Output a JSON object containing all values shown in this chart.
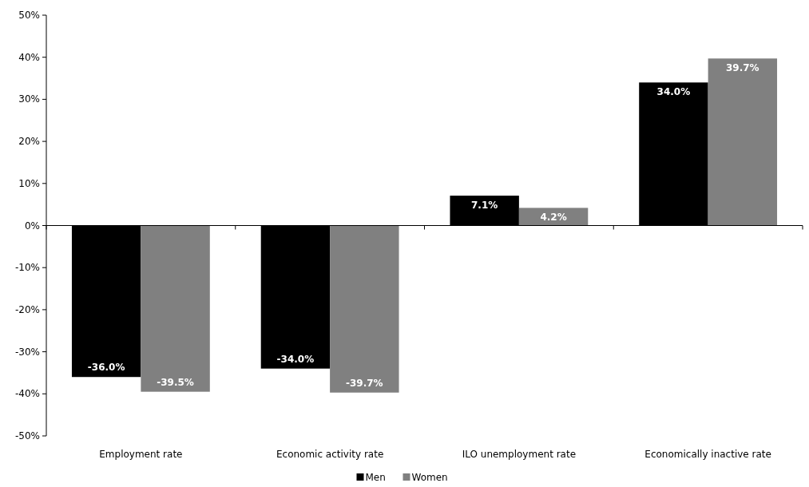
{
  "chart_data": {
    "type": "bar",
    "categories": [
      "Employment rate",
      "Economic activity rate",
      "ILO unemployment rate",
      "Economically inactive rate"
    ],
    "series": [
      {
        "name": "Men",
        "color": "#000000",
        "values": [
          -36.0,
          -34.0,
          7.1,
          34.0
        ],
        "value_labels": [
          "-36.0%",
          "-34.0%",
          "7.1%",
          "34.0%"
        ]
      },
      {
        "name": "Women",
        "color": "#808080",
        "values": [
          -39.5,
          -39.7,
          4.2,
          39.7
        ],
        "value_labels": [
          "-39.5%",
          "-39.7%",
          "4.2%",
          "39.7%"
        ]
      }
    ],
    "ylim": [
      -50,
      50
    ],
    "yticks": [
      {
        "value": -50,
        "label": "-50%"
      },
      {
        "value": -40,
        "label": "-40%"
      },
      {
        "value": -30,
        "label": "-30%"
      },
      {
        "value": -20,
        "label": "-20%"
      },
      {
        "value": -10,
        "label": "-10%"
      },
      {
        "value": 0,
        "label": "0%"
      },
      {
        "value": 10,
        "label": "10%"
      },
      {
        "value": 20,
        "label": "20%"
      },
      {
        "value": 30,
        "label": "30%"
      },
      {
        "value": 40,
        "label": "40%"
      },
      {
        "value": 50,
        "label": "50%"
      }
    ],
    "legend": "bottom"
  }
}
